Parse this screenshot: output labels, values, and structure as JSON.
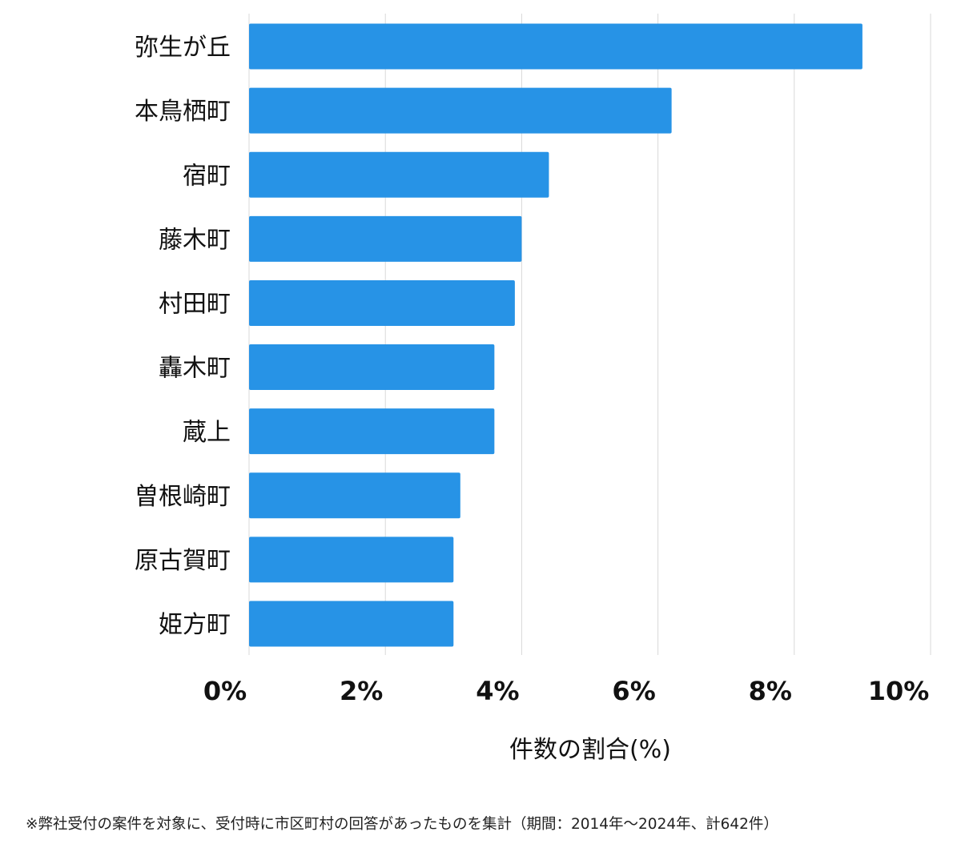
{
  "chart_data": {
    "type": "bar",
    "orientation": "horizontal",
    "categories": [
      "弥生が丘",
      "本鳥栖町",
      "宿町",
      "藤木町",
      "村田町",
      "轟木町",
      "蔵上",
      "曽根崎町",
      "原古賀町",
      "姫方町"
    ],
    "values": [
      9.0,
      6.2,
      4.4,
      4.0,
      3.9,
      3.6,
      3.6,
      3.1,
      3.0,
      3.0
    ],
    "xlabel": "件数の割合(%)",
    "ylabel": "",
    "xlim": [
      0,
      10
    ],
    "xticks": [
      0,
      2,
      4,
      6,
      8,
      10
    ],
    "tick_labels": [
      "0%",
      "2%",
      "4%",
      "6%",
      "8%",
      "10%"
    ],
    "grid": true,
    "bar_color": "#2793e6",
    "grid_color": "#d9d9d9"
  },
  "footnote": "※弊社受付の案件を対象に、受付時に市区町村の回答があったものを集計（期間：2014年～2024年、計642件）"
}
